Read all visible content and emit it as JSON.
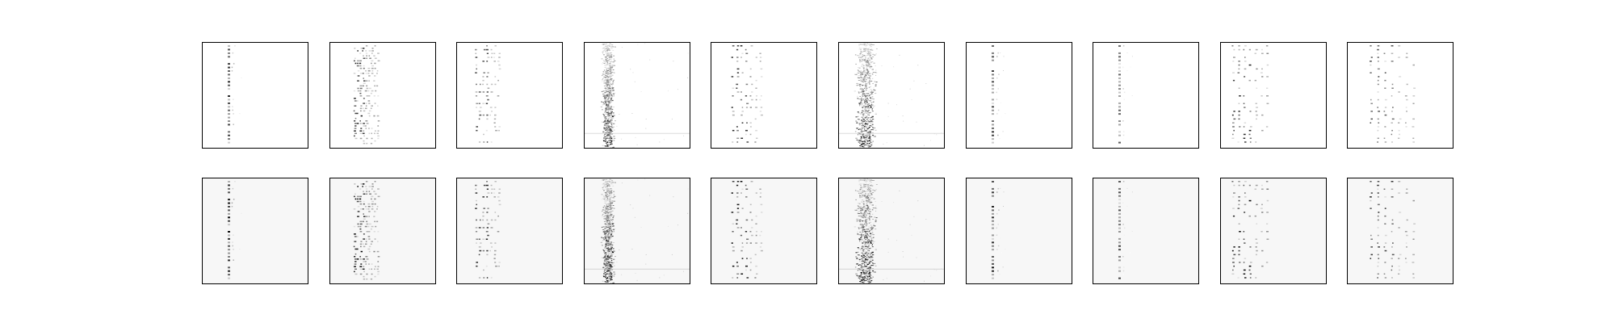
{
  "figure": {
    "background": "#ffffff",
    "frame_color": "#000000"
  },
  "chart_data": {
    "type": "heatmap",
    "layout": "grid",
    "rows": 2,
    "columns": 10,
    "colormap": "Greys",
    "axes_visible": false,
    "ticks_visible": false,
    "title": "",
    "xlabel": "",
    "ylabel": "",
    "row_backgrounds": [
      "#ffffff",
      "#f7f7f7"
    ],
    "panels": [
      {
        "column": 1,
        "pattern": "sparse-single-column",
        "x_center": 0.25,
        "spread": 0.02,
        "max_intensity": 0.85
      },
      {
        "column": 2,
        "pattern": "multi-column-dense",
        "x_center": 0.35,
        "spread": 0.06,
        "max_intensity": 0.9
      },
      {
        "column": 3,
        "pattern": "sparse-multi-column",
        "x_center": 0.3,
        "spread": 0.08,
        "max_intensity": 0.75
      },
      {
        "column": 4,
        "pattern": "dense-noisy-band",
        "x_center": 0.22,
        "spread": 0.05,
        "max_intensity": 0.95
      },
      {
        "column": 5,
        "pattern": "multi-column-spots",
        "x_center": 0.35,
        "spread": 0.1,
        "max_intensity": 0.85
      },
      {
        "column": 6,
        "pattern": "dense-noisy-band",
        "x_center": 0.25,
        "spread": 0.08,
        "max_intensity": 0.95
      },
      {
        "column": 7,
        "pattern": "sparse-single-column",
        "x_center": 0.25,
        "spread": 0.02,
        "max_intensity": 0.8
      },
      {
        "column": 8,
        "pattern": "sparse-single-column",
        "x_center": 0.25,
        "spread": 0.02,
        "max_intensity": 0.7
      },
      {
        "column": 9,
        "pattern": "multi-column-spots",
        "x_center": 0.3,
        "spread": 0.12,
        "max_intensity": 0.9
      },
      {
        "column": 10,
        "pattern": "multi-column-spots",
        "x_center": 0.45,
        "spread": 0.15,
        "max_intensity": 0.75
      }
    ]
  }
}
